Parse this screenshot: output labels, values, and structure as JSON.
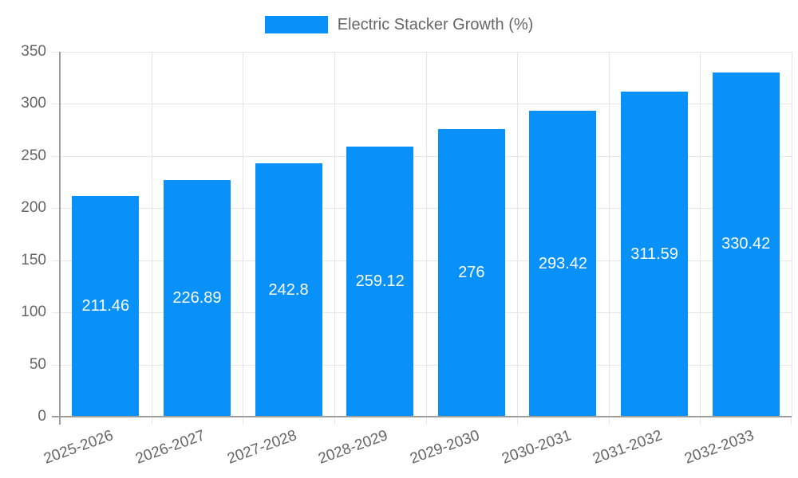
{
  "chart_data": {
    "type": "bar",
    "title": "Electric Stacker Growth (%)",
    "categories": [
      "2025-2026",
      "2026-2027",
      "2027-2028",
      "2028-2029",
      "2029-2030",
      "2030-2031",
      "2031-2032",
      "2032-2033"
    ],
    "series": [
      {
        "name": "Electric Stacker Growth (%)",
        "values": [
          211.46,
          226.89,
          242.8,
          259.12,
          276,
          293.42,
          311.59,
          330.42
        ]
      }
    ],
    "value_labels": [
      "211.46",
      "226.89",
      "242.8",
      "259.12",
      "276",
      "293.42",
      "311.59",
      "330.42"
    ],
    "xlabel": "",
    "ylabel": "",
    "ylim": [
      0,
      350
    ],
    "yticks": [
      0,
      50,
      100,
      150,
      200,
      250,
      300,
      350
    ],
    "grid": true,
    "legend_position": "top",
    "colors": {
      "bar": "#0891f8",
      "bar_label": "#ffffff",
      "grid": "#e6e6e6",
      "axis": "#9e9e9e",
      "text": "#666666",
      "background": "#ffffff"
    }
  }
}
